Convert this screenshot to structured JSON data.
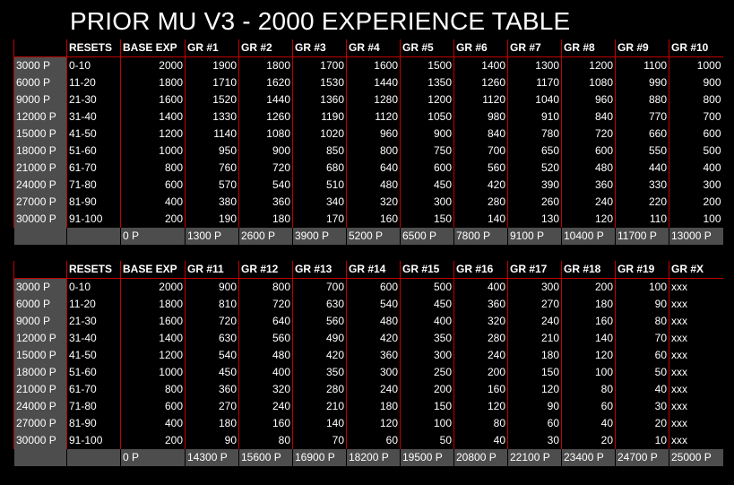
{
  "title": "PRIOR MU V3 - 2000 EXPERIENCE TABLE",
  "levels": [
    "3000 P",
    "6000 P",
    "9000 P",
    "12000 P",
    "15000 P",
    "18000 P",
    "21000 P",
    "24000 P",
    "27000 P",
    "30000 P"
  ],
  "ranges": [
    "0-10",
    "11-20",
    "21-30",
    "31-40",
    "41-50",
    "51-60",
    "61-70",
    "71-80",
    "81-90",
    "91-100"
  ],
  "base_exp": [
    "2000",
    "1800",
    "1600",
    "1400",
    "1200",
    "1000",
    "800",
    "600",
    "400",
    "200"
  ],
  "table1": {
    "headers": [
      "RESETS",
      "BASE EXP",
      "GR #1",
      "GR #2",
      "GR #3",
      "GR #4",
      "GR #5",
      "GR #6",
      "GR #7",
      "GR #8",
      "GR #9",
      "GR #10"
    ],
    "gr": [
      [
        "1900",
        "1800",
        "1700",
        "1600",
        "1500",
        "1400",
        "1300",
        "1200",
        "1100",
        "1000"
      ],
      [
        "1710",
        "1620",
        "1530",
        "1440",
        "1350",
        "1260",
        "1170",
        "1080",
        "990",
        "900"
      ],
      [
        "1520",
        "1440",
        "1360",
        "1280",
        "1200",
        "1120",
        "1040",
        "960",
        "880",
        "800"
      ],
      [
        "1330",
        "1260",
        "1190",
        "1120",
        "1050",
        "980",
        "910",
        "840",
        "770",
        "700"
      ],
      [
        "1140",
        "1080",
        "1020",
        "960",
        "900",
        "840",
        "780",
        "720",
        "660",
        "600"
      ],
      [
        "950",
        "900",
        "850",
        "800",
        "750",
        "700",
        "650",
        "600",
        "550",
        "500"
      ],
      [
        "760",
        "720",
        "680",
        "640",
        "600",
        "560",
        "520",
        "480",
        "440",
        "400"
      ],
      [
        "570",
        "540",
        "510",
        "480",
        "450",
        "420",
        "390",
        "360",
        "330",
        "300"
      ],
      [
        "380",
        "360",
        "340",
        "320",
        "300",
        "280",
        "260",
        "240",
        "220",
        "200"
      ],
      [
        "190",
        "180",
        "170",
        "160",
        "150",
        "140",
        "130",
        "120",
        "110",
        "100"
      ]
    ],
    "totals": [
      "0 P",
      "1300 P",
      "2600 P",
      "3900 P",
      "5200 P",
      "6500 P",
      "7800 P",
      "9100 P",
      "10400 P",
      "11700 P",
      "13000 P"
    ]
  },
  "table2": {
    "headers": [
      "RESETS",
      "BASE EXP",
      "GR #11",
      "GR #12",
      "GR #13",
      "GR #14",
      "GR #15",
      "GR #16",
      "GR #17",
      "GR #18",
      "GR #19",
      "GR #X"
    ],
    "gr": [
      [
        "900",
        "800",
        "700",
        "600",
        "500",
        "400",
        "300",
        "200",
        "100"
      ],
      [
        "810",
        "720",
        "630",
        "540",
        "450",
        "360",
        "270",
        "180",
        "90"
      ],
      [
        "720",
        "640",
        "560",
        "480",
        "400",
        "320",
        "240",
        "160",
        "80"
      ],
      [
        "630",
        "560",
        "490",
        "420",
        "350",
        "280",
        "210",
        "140",
        "70"
      ],
      [
        "540",
        "480",
        "420",
        "360",
        "300",
        "240",
        "180",
        "120",
        "60"
      ],
      [
        "450",
        "400",
        "350",
        "300",
        "250",
        "200",
        "150",
        "100",
        "50"
      ],
      [
        "360",
        "320",
        "280",
        "240",
        "200",
        "160",
        "120",
        "80",
        "40"
      ],
      [
        "270",
        "240",
        "210",
        "180",
        "150",
        "120",
        "90",
        "60",
        "30"
      ],
      [
        "180",
        "160",
        "140",
        "120",
        "100",
        "80",
        "60",
        "40",
        "20"
      ],
      [
        "90",
        "80",
        "70",
        "60",
        "50",
        "40",
        "30",
        "20",
        "10"
      ]
    ],
    "grx": "xxx",
    "totals": [
      "0 P",
      "14300 P",
      "15600 P",
      "16900 P",
      "18200 P",
      "19500 P",
      "20800 P",
      "22100 P",
      "23400 P",
      "24700 P",
      "25000 P"
    ]
  }
}
